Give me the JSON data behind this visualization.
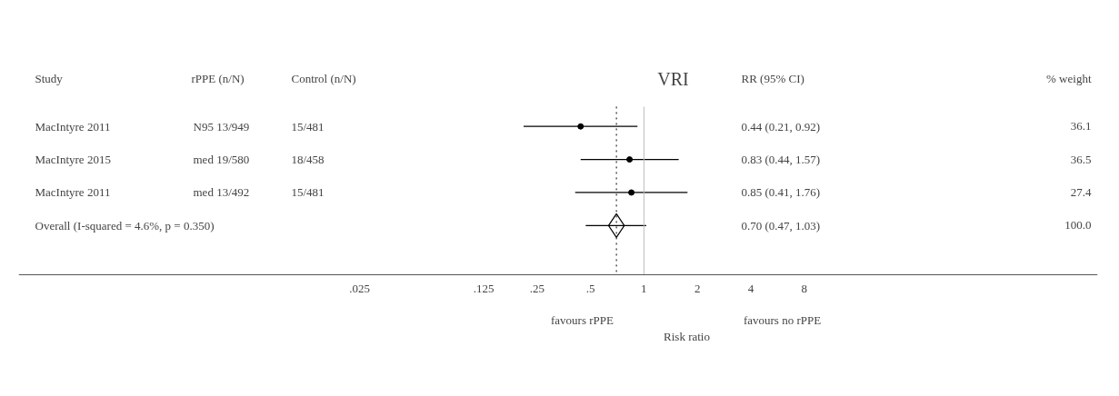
{
  "chart_data": {
    "type": "scatter",
    "orientation": "horizontal",
    "title": "VRI",
    "xlabel": "Risk ratio",
    "categories": [
      "MacIntyre 2011",
      "MacIntyre 2015",
      "MacIntyre 2011",
      "Overall  (I-squared = 4.6%, p = 0.350)"
    ],
    "series": [
      {
        "marker": "circle",
        "color": "#000000",
        "values": [
          0.44,
          0.83,
          0.85,
          null
        ],
        "errors": [
          [
            0.21,
            0.92
          ],
          [
            0.44,
            1.57
          ],
          [
            0.41,
            1.76
          ],
          null
        ]
      },
      {
        "marker": "diamond",
        "color": "#000000",
        "values": [
          null,
          null,
          null,
          0.7
        ],
        "errors": [
          null,
          null,
          null,
          [
            0.47,
            1.03
          ]
        ]
      }
    ],
    "log": "x",
    "xlim": [
      0.0003,
      360
    ],
    "xticks": [
      {
        "value": 0.025,
        "label": ".025"
      },
      {
        "value": 0.125,
        "label": ".125"
      },
      {
        "value": 0.25,
        "label": ".25"
      },
      {
        "value": 0.5,
        "label": ".5"
      },
      1,
      2,
      4,
      8
    ],
    "ref_lines": [
      {
        "axis": "x",
        "value": 1,
        "color": "#bbbbbb",
        "line_style": "solid"
      },
      {
        "axis": "x",
        "value": 0.7,
        "color": "#000000",
        "line_style": "dotted"
      }
    ],
    "annotations": [
      "Study",
      "rPPE (n/N)",
      "Control (n/N)",
      "RR (95% CI)",
      "% weight",
      "N95  13/949",
      "15/481",
      "0.44 (0.21, 0.92)",
      "36.1",
      "med  19/580",
      "18/458",
      "0.83 (0.44, 1.57)",
      "36.5",
      "med  13/492",
      "15/481",
      "0.85 (0.41, 1.76)",
      "27.4",
      "0.70 (0.47, 1.03)",
      "100.0",
      "favours rPPE",
      "favours no rPPE"
    ],
    "grid": false
  }
}
